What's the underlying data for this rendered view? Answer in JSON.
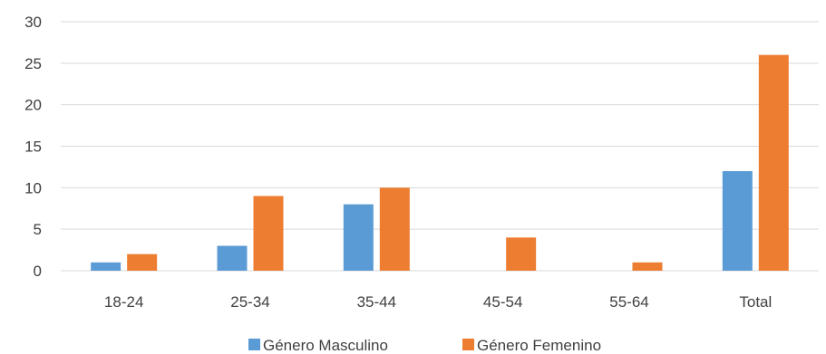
{
  "chart_data": {
    "type": "bar",
    "title": "",
    "xlabel": "",
    "ylabel": "",
    "categories": [
      "18-24",
      "25-34",
      "35-44",
      "45-54",
      "55-64",
      "Total"
    ],
    "series": [
      {
        "name": "Género Masculino",
        "values": [
          1,
          3,
          8,
          0,
          0,
          12
        ],
        "color": "#5b9bd5"
      },
      {
        "name": "Género Femenino",
        "values": [
          2,
          9,
          10,
          4,
          1,
          26
        ],
        "color": "#ed7d31"
      }
    ],
    "ylim": [
      0,
      30
    ],
    "yticks": [
      0,
      5,
      10,
      15,
      20,
      25,
      30
    ],
    "grid": true,
    "legend_position": "bottom"
  }
}
